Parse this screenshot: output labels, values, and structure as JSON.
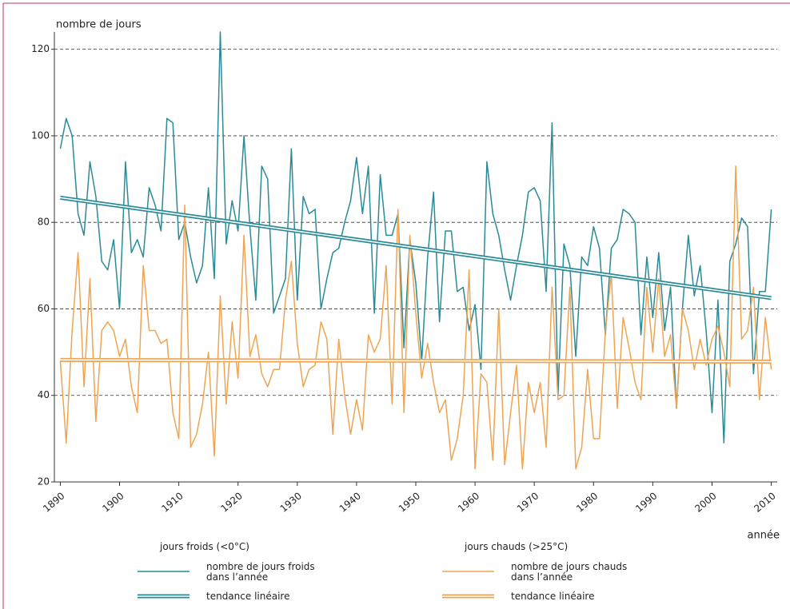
{
  "chart_data": {
    "type": "line",
    "y_label": "nombre de jours",
    "x_label": "année",
    "x": [
      1890,
      1891,
      1892,
      1893,
      1894,
      1895,
      1896,
      1897,
      1898,
      1899,
      1900,
      1901,
      1902,
      1903,
      1904,
      1905,
      1906,
      1907,
      1908,
      1909,
      1910,
      1911,
      1912,
      1913,
      1914,
      1915,
      1916,
      1917,
      1918,
      1919,
      1920,
      1921,
      1922,
      1923,
      1924,
      1925,
      1926,
      1927,
      1928,
      1929,
      1930,
      1931,
      1932,
      1933,
      1934,
      1935,
      1936,
      1937,
      1938,
      1939,
      1940,
      1941,
      1942,
      1943,
      1944,
      1945,
      1946,
      1947,
      1948,
      1949,
      1950,
      1951,
      1952,
      1953,
      1954,
      1955,
      1956,
      1957,
      1958,
      1959,
      1960,
      1961,
      1962,
      1963,
      1964,
      1965,
      1966,
      1967,
      1968,
      1969,
      1970,
      1971,
      1972,
      1973,
      1974,
      1975,
      1976,
      1977,
      1978,
      1979,
      1980,
      1981,
      1982,
      1983,
      1984,
      1985,
      1986,
      1987,
      1988,
      1989,
      1990,
      1991,
      1992,
      1993,
      1994,
      1995,
      1996,
      1997,
      1998,
      1999,
      2000,
      2001,
      2002,
      2003,
      2004,
      2005,
      2006,
      2007,
      2008,
      2009,
      2010
    ],
    "xlim": [
      1889,
      2011
    ],
    "xticks": [
      1890,
      1900,
      1910,
      1920,
      1930,
      1940,
      1950,
      1960,
      1970,
      1980,
      1990,
      2000,
      2010
    ],
    "ylim": [
      20,
      124
    ],
    "yticks": [
      20,
      40,
      60,
      80,
      100,
      120
    ],
    "grid": true,
    "legend_titles": [
      "jours froids (<0°C)",
      "jours chauds (>25°C)"
    ],
    "series": [
      {
        "name": "nombre de jours froids dans l’année",
        "color": "#2a8b97",
        "values": [
          97,
          104,
          100,
          82,
          77,
          94,
          86,
          71,
          69,
          76,
          60,
          94,
          73,
          76,
          72,
          88,
          84,
          78,
          104,
          103,
          76,
          80,
          72,
          66,
          70,
          88,
          67,
          124,
          75,
          85,
          78,
          100,
          79,
          62,
          93,
          90,
          59,
          63,
          67,
          97,
          62,
          86,
          82,
          83,
          60,
          67,
          73,
          74,
          80,
          85,
          95,
          82,
          93,
          59,
          91,
          77,
          77,
          82,
          51,
          76,
          66,
          48,
          72,
          87,
          57,
          78,
          78,
          64,
          65,
          55,
          61,
          46,
          94,
          82,
          77,
          69,
          62,
          70,
          77,
          87,
          88,
          85,
          64,
          103,
          40,
          75,
          70,
          49,
          72,
          70,
          79,
          74,
          54,
          74,
          76,
          83,
          82,
          80,
          54,
          72,
          58,
          73,
          55,
          65,
          37,
          60,
          77,
          63,
          70,
          55,
          36,
          62,
          29,
          71,
          75,
          81,
          79,
          45,
          64,
          64,
          83
        ]
      },
      {
        "name": "tendance linéaire",
        "color": "#2a8b97",
        "trend": true,
        "x": [
          1890,
          2010
        ],
        "values": [
          85.7,
          62.5
        ]
      },
      {
        "name": "nombre de jours chauds dans l’année",
        "color": "#eea553",
        "values": [
          48,
          29,
          55,
          73,
          42,
          67,
          34,
          55,
          57,
          55,
          49,
          53,
          42,
          36,
          70,
          55,
          55,
          52,
          53,
          36,
          30,
          84,
          28,
          31,
          38,
          50,
          26,
          63,
          38,
          57,
          44,
          77,
          49,
          54,
          45,
          42,
          46,
          46,
          62,
          71,
          52,
          42,
          46,
          47,
          57,
          53,
          31,
          53,
          40,
          31,
          39,
          32,
          54,
          50,
          53,
          70,
          38,
          83,
          36,
          77,
          59,
          44,
          52,
          43,
          36,
          39,
          25,
          30,
          40,
          69,
          23,
          45,
          43,
          25,
          60,
          24,
          36,
          47,
          23,
          43,
          36,
          43,
          28,
          65,
          39,
          40,
          65,
          23,
          28,
          46,
          30,
          30,
          55,
          68,
          37,
          58,
          51,
          43,
          39,
          65,
          50,
          67,
          49,
          54,
          37,
          60,
          55,
          46,
          53,
          47,
          53,
          56,
          50,
          42,
          93,
          53,
          55,
          65,
          39,
          58,
          46
        ]
      },
      {
        "name": "tendance linéaire",
        "color": "#eea553",
        "trend": true,
        "x": [
          1890,
          2010
        ],
        "values": [
          48.2,
          47.8
        ]
      }
    ]
  }
}
